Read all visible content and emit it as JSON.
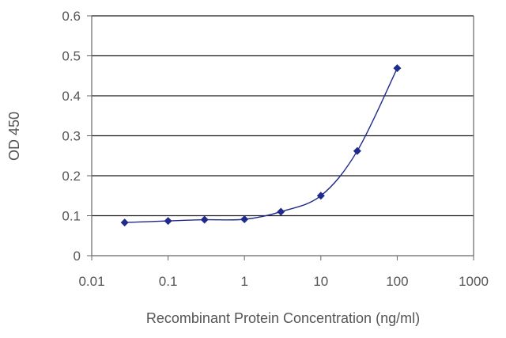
{
  "chart_data": {
    "type": "line",
    "xlabel": "Recombinant Protein Concentration (ng/ml)",
    "ylabel": "OD 450",
    "x_scale": "log",
    "xlim": [
      0.01,
      1000
    ],
    "ylim": [
      0,
      0.6
    ],
    "x_ticks": [
      "0.01",
      "0.1",
      "1",
      "10",
      "100",
      "1000"
    ],
    "y_ticks": [
      "0",
      "0.1",
      "0.2",
      "0.3",
      "0.4",
      "0.5",
      "0.6"
    ],
    "grid": "horizontal",
    "series": [
      {
        "x": [
          0.027,
          0.1,
          0.3,
          1,
          3,
          10,
          30,
          100
        ],
        "y": [
          0.083,
          0.087,
          0.09,
          0.091,
          0.11,
          0.15,
          0.262,
          0.469
        ],
        "color": "#1f2a8a"
      }
    ]
  }
}
